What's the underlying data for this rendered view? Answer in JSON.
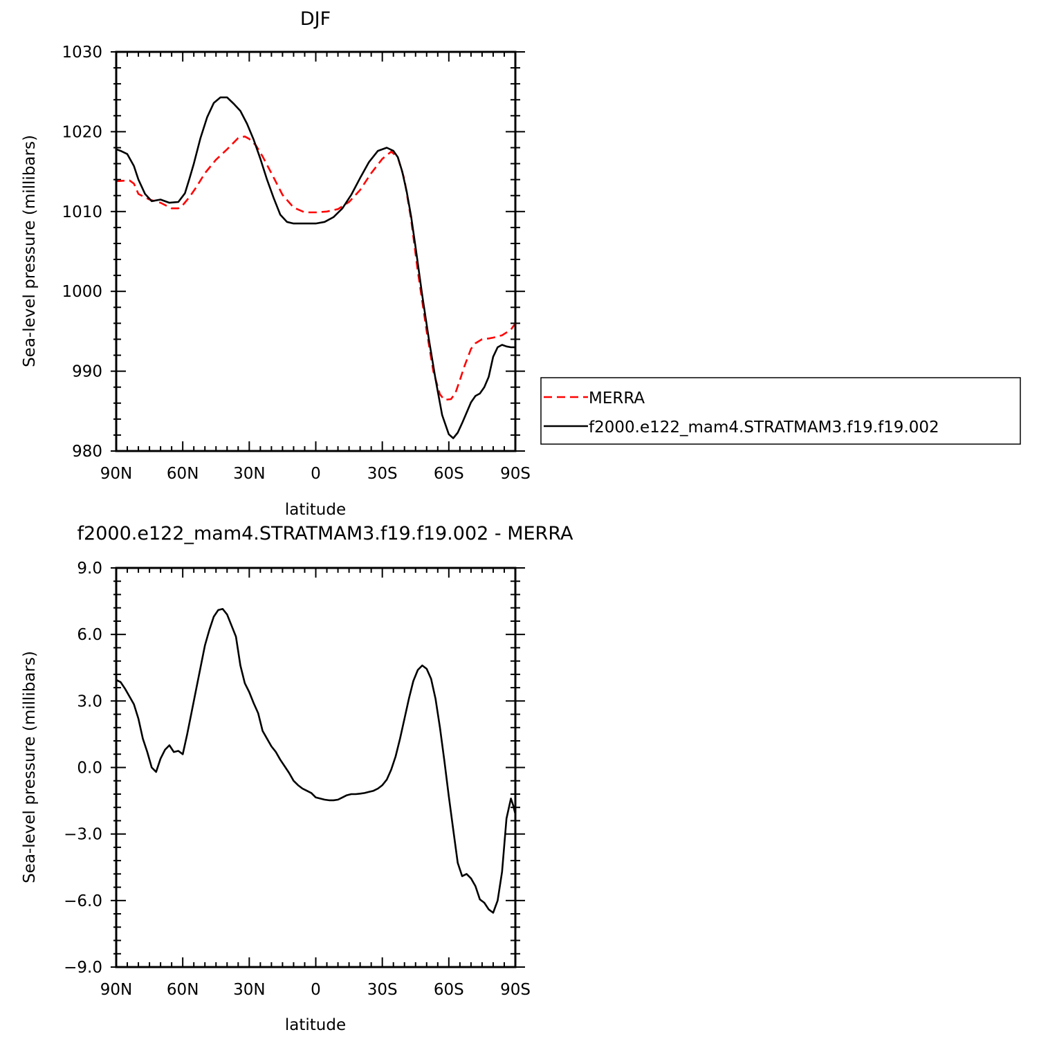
{
  "chart_data": [
    {
      "type": "line",
      "title": "DJF",
      "xlabel": "latitude",
      "ylabel": "Sea-level pressure (millibars)",
      "xlim": [
        90,
        -90
      ],
      "ylim": [
        980,
        1030
      ],
      "xtick_values": [
        90,
        60,
        30,
        0,
        -30,
        -60,
        -90
      ],
      "xtick_labels": [
        "90N",
        "60N",
        "30N",
        "0",
        "30S",
        "60S",
        "90S"
      ],
      "ytick_values": [
        980,
        990,
        1000,
        1010,
        1020,
        1030
      ],
      "ytick_labels": [
        "980",
        "990",
        "1000",
        "1010",
        "1020",
        "1030"
      ],
      "legend_position": "right",
      "series": [
        {
          "name": "MERRA",
          "color": "#ff0000",
          "dash": "dashed",
          "x": [
            90,
            84,
            82,
            80,
            75,
            70,
            65,
            62,
            60,
            57,
            54,
            50,
            45,
            40,
            35,
            32,
            30,
            27,
            24,
            20,
            15,
            10,
            5,
            0,
            -5,
            -10,
            -15,
            -20,
            -25,
            -30,
            -34,
            -37,
            -40,
            -43,
            -46,
            -50,
            -53,
            -56,
            -58,
            -61,
            -63,
            -65,
            -67,
            -70,
            -72,
            -75,
            -78,
            -80,
            -84,
            -88,
            -90
          ],
          "y": [
            1013.8,
            1013.9,
            1013.5,
            1012.2,
            1011.5,
            1011.1,
            1010.4,
            1010.4,
            1010.8,
            1011.8,
            1013,
            1014.8,
            1016.5,
            1017.8,
            1019.2,
            1019.4,
            1019.1,
            1018.3,
            1016.9,
            1014.8,
            1012.1,
            1010.5,
            1009.9,
            1009.9,
            1010,
            1010.3,
            1011.2,
            1012.7,
            1014.8,
            1016.6,
            1017.5,
            1016.8,
            1014,
            1009,
            1002.5,
            995,
            990,
            987.1,
            986.4,
            986.5,
            987.3,
            988.9,
            990.6,
            992.8,
            993.5,
            994,
            994.1,
            994.2,
            994.5,
            995.2,
            996
          ]
        },
        {
          "name": "f2000.e122_mam4.STRATMAM3.f19.f19.002",
          "color": "#000000",
          "dash": "solid",
          "x": [
            90,
            88,
            85,
            82,
            80,
            77,
            74,
            70,
            66,
            62,
            59,
            57,
            55,
            52,
            49,
            46,
            43,
            40,
            37,
            34,
            31,
            28,
            25,
            22,
            19,
            16,
            13,
            10,
            7,
            4,
            0,
            -4,
            -8,
            -12,
            -16,
            -20,
            -24,
            -28,
            -32,
            -35,
            -37,
            -39,
            -41,
            -43,
            -45,
            -48,
            -51,
            -54,
            -57,
            -60,
            -62,
            -64,
            -66,
            -68,
            -70,
            -72,
            -74,
            -76,
            -78,
            -80,
            -82,
            -84,
            -86,
            -88,
            -90
          ],
          "y": [
            1017.8,
            1017.6,
            1017.2,
            1015.7,
            1014,
            1012.2,
            1011.3,
            1011.5,
            1011.1,
            1011.2,
            1012.3,
            1014.1,
            1016,
            1019.2,
            1021.8,
            1023.6,
            1024.3,
            1024.3,
            1023.5,
            1022.6,
            1021,
            1019,
            1016.6,
            1014,
            1011.7,
            1009.6,
            1008.7,
            1008.5,
            1008.5,
            1008.5,
            1008.5,
            1008.7,
            1009.3,
            1010.4,
            1012.1,
            1014.2,
            1016.2,
            1017.6,
            1018,
            1017.6,
            1016.8,
            1015,
            1012.5,
            1009.4,
            1005.5,
            999.5,
            994,
            989,
            984.5,
            982.1,
            981.6,
            982.3,
            983.5,
            984.8,
            986.1,
            986.9,
            987.2,
            988,
            989.3,
            991.8,
            993,
            993.3,
            993.1,
            993,
            993
          ]
        }
      ]
    },
    {
      "type": "line",
      "title": "f2000.e122_mam4.STRATMAM3.f19.f19.002  -  MERRA",
      "xlabel": "latitude",
      "ylabel": "Sea-level pressure (millibars)",
      "xlim": [
        90,
        -90
      ],
      "ylim": [
        -9,
        9
      ],
      "xtick_values": [
        90,
        60,
        30,
        0,
        -30,
        -60,
        -90
      ],
      "xtick_labels": [
        "90N",
        "60N",
        "30N",
        "0",
        "30S",
        "60S",
        "90S"
      ],
      "ytick_values": [
        -9,
        -6,
        -3,
        0,
        3,
        6,
        9
      ],
      "ytick_labels": [
        "−9.0",
        "−6.0",
        "−3.0",
        "0.0",
        "3.0",
        "6.0",
        "9.0"
      ],
      "series": [
        {
          "color": "#000000",
          "dash": "solid",
          "x": [
            90,
            88,
            86,
            84,
            82,
            80,
            78,
            76,
            74,
            72,
            70,
            68,
            66,
            64,
            62,
            60,
            58,
            56,
            54,
            52,
            50,
            48,
            46,
            44,
            42,
            40,
            38,
            36,
            34,
            32,
            30,
            28,
            26,
            24,
            22,
            20,
            18,
            16,
            14,
            12,
            10,
            8,
            6,
            4,
            2,
            0,
            -2,
            -4,
            -6,
            -8,
            -10,
            -12,
            -14,
            -16,
            -18,
            -20,
            -22,
            -24,
            -26,
            -28,
            -30,
            -32,
            -34,
            -36,
            -38,
            -40,
            -42,
            -44,
            -46,
            -48,
            -50,
            -52,
            -54,
            -56,
            -58,
            -60,
            -62,
            -64,
            -66,
            -68,
            -70,
            -72,
            -74,
            -76,
            -78,
            -80,
            -82,
            -84,
            -86,
            -88,
            -89,
            -90
          ],
          "y": [
            3.95,
            3.85,
            3.55,
            3.2,
            2.85,
            2.2,
            1.3,
            0.7,
            0,
            -0.2,
            0.4,
            0.8,
            1,
            0.7,
            0.75,
            0.6,
            1.5,
            2.5,
            3.5,
            4.5,
            5.5,
            6.2,
            6.8,
            7.1,
            7.15,
            6.9,
            6.4,
            5.9,
            4.6,
            3.8,
            3.4,
            2.9,
            2.45,
            1.65,
            1.3,
            0.95,
            0.7,
            0.35,
            0.05,
            -0.25,
            -0.6,
            -0.8,
            -0.95,
            -1.05,
            -1.15,
            -1.35,
            -1.4,
            -1.45,
            -1.48,
            -1.48,
            -1.45,
            -1.35,
            -1.25,
            -1.2,
            -1.2,
            -1.18,
            -1.15,
            -1.1,
            -1.05,
            -0.95,
            -0.8,
            -0.55,
            -0.1,
            0.5,
            1.3,
            2.2,
            3.1,
            3.9,
            4.4,
            4.6,
            4.45,
            4,
            3.1,
            1.8,
            0.3,
            -1.3,
            -2.8,
            -4.3,
            -4.9,
            -4.8,
            -5,
            -5.35,
            -5.95,
            -6.1,
            -6.4,
            -6.55,
            -6,
            -4.7,
            -2.3,
            -1.4,
            -1.7,
            -2.1
          ]
        }
      ]
    }
  ]
}
